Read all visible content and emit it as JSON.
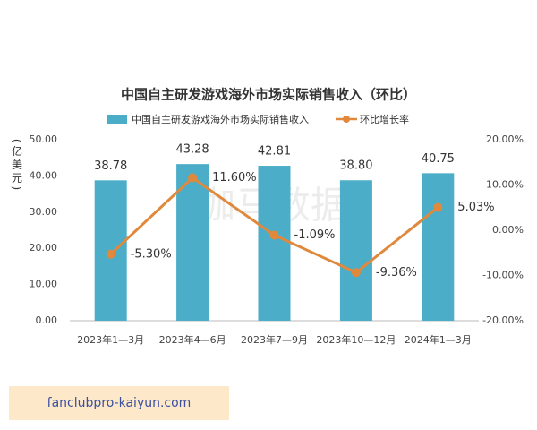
{
  "chart_data": {
    "type": "combo",
    "title": "中国自主研发游戏海外市场实际销售收入（环比）",
    "y_label": "(亿美元)",
    "watermark": "伽马数据",
    "categories": [
      "2023年1—3月",
      "2023年4—6月",
      "2023年7—9月",
      "2023年10—12月",
      "2024年1—3月"
    ],
    "series": [
      {
        "name": "中国自主研发游戏海外市场实际销售收入",
        "type": "bar",
        "color": "#4badc7",
        "values": [
          38.78,
          43.28,
          42.81,
          38.8,
          40.75
        ],
        "value_labels": [
          "38.78",
          "43.28",
          "42.81",
          "38.80",
          "40.75"
        ]
      },
      {
        "name": "环比增长率",
        "type": "line",
        "axis": "y2",
        "color": "#e0893d",
        "values": [
          -5.3,
          11.6,
          -1.09,
          -9.36,
          5.03
        ],
        "value_labels": [
          "-5.30%",
          "11.60%",
          "-1.09%",
          "-9.36%",
          "5.03%"
        ]
      }
    ],
    "ylim": [
      0,
      50
    ],
    "yticks": [
      {
        "value": 0,
        "label": "0.00"
      },
      {
        "value": 10,
        "label": "10.00"
      },
      {
        "value": 20,
        "label": "20.00"
      },
      {
        "value": 30,
        "label": "30.00"
      },
      {
        "value": 40,
        "label": "40.00"
      },
      {
        "value": 50,
        "label": "50.00"
      }
    ],
    "y2lim": [
      -20,
      20
    ],
    "y2ticks": [
      {
        "value": -20,
        "label": "-20.00%"
      },
      {
        "value": -10,
        "label": "-10.00%"
      },
      {
        "value": 0,
        "label": "0.00%"
      },
      {
        "value": 10,
        "label": "10.00%"
      },
      {
        "value": 20,
        "label": "20.00%"
      }
    ]
  },
  "footer": {
    "text": "fanclubpro-kaiyun.com"
  }
}
